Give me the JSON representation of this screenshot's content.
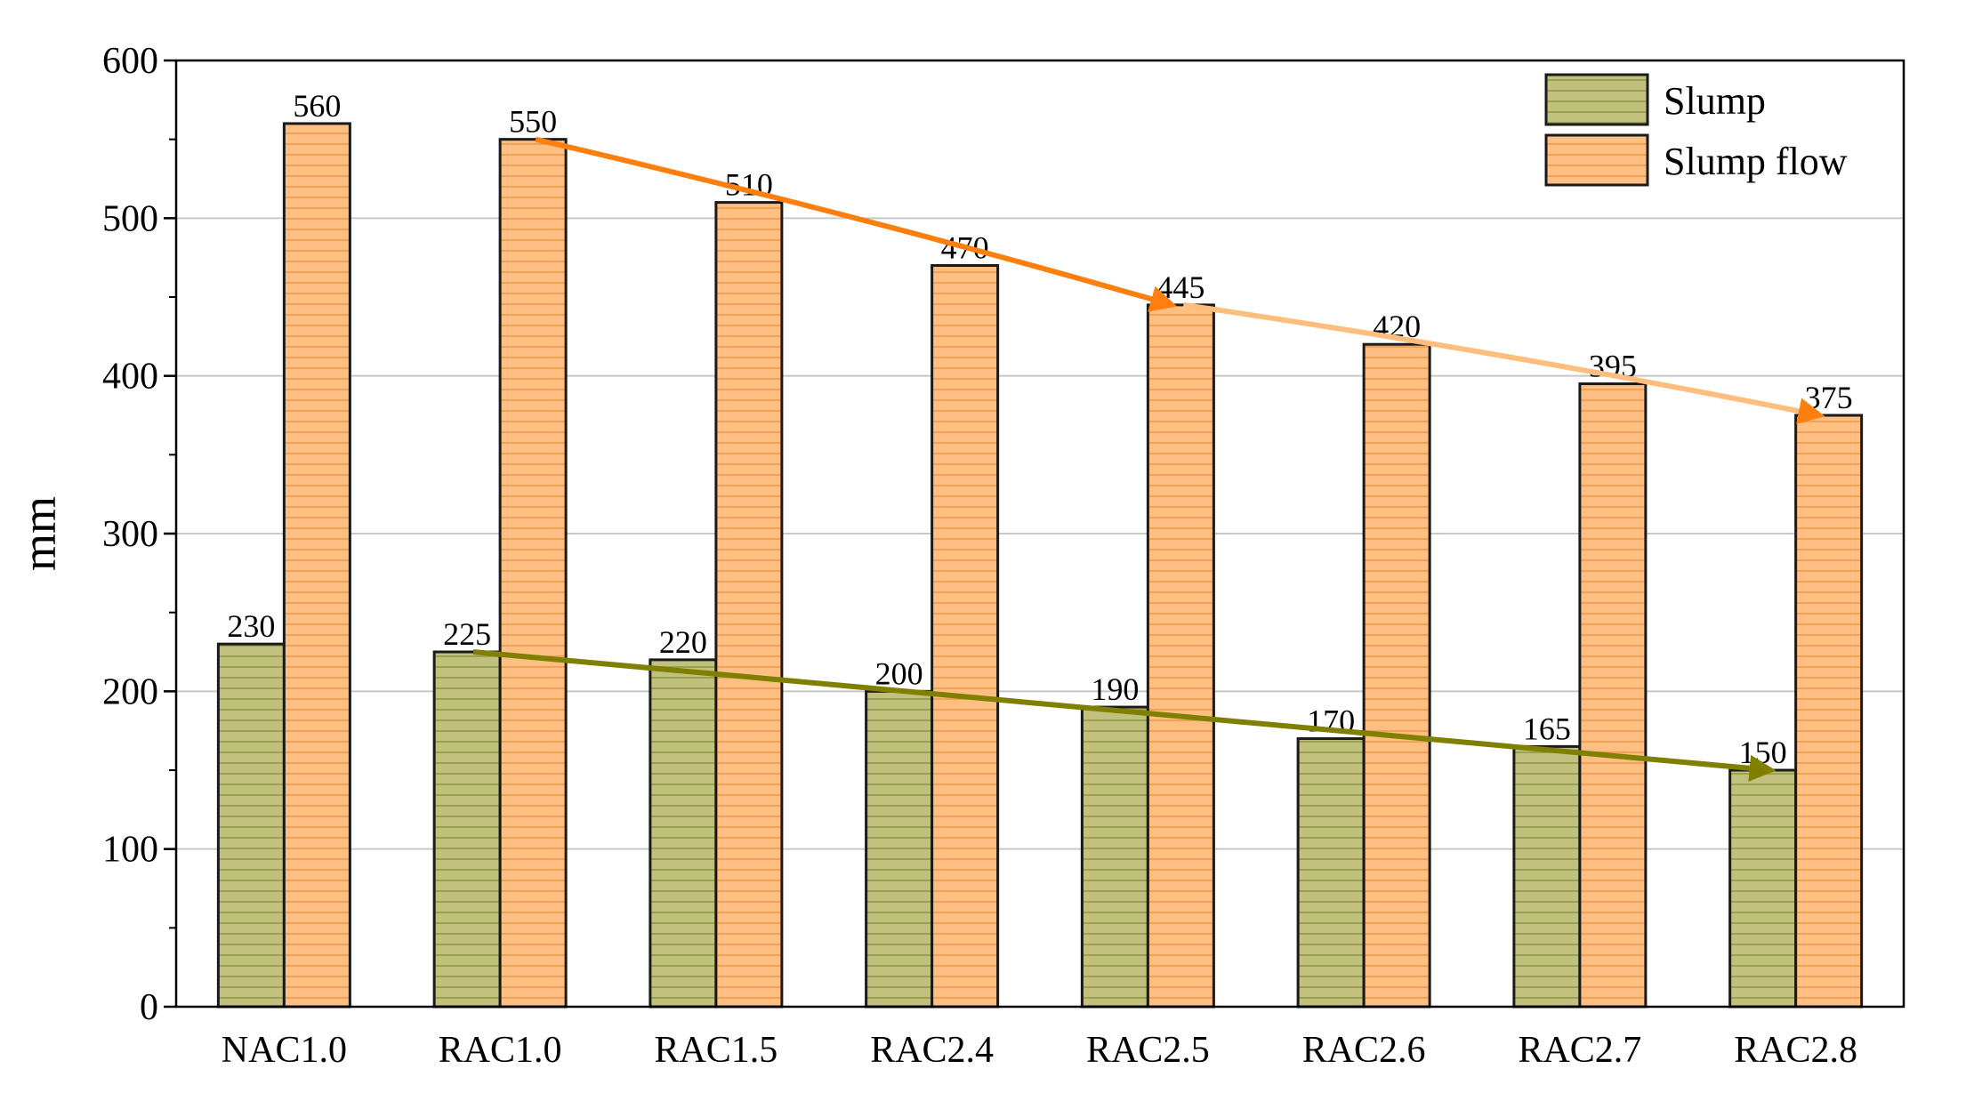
{
  "chart_data": {
    "type": "bar",
    "title": "",
    "xlabel": "",
    "ylabel": "mm",
    "ylim": [
      0,
      600
    ],
    "yticks": [
      0,
      100,
      200,
      300,
      400,
      500,
      600
    ],
    "grid": true,
    "legend_position": "top-right",
    "categories": [
      "NAC1.0",
      "RAC1.0",
      "RAC1.5",
      "RAC2.4",
      "RAC2.5",
      "RAC2.6",
      "RAC2.7",
      "RAC2.8"
    ],
    "series": [
      {
        "name": "Slump",
        "color": "#c2c07e",
        "stripe_color": "#8f9a44",
        "values": [
          230,
          225,
          220,
          200,
          190,
          170,
          165,
          150
        ]
      },
      {
        "name": "Slump flow",
        "color": "#ffbf82",
        "stripe_color": "#ee9a4a",
        "values": [
          560,
          550,
          510,
          470,
          445,
          420,
          395,
          375
        ]
      }
    ],
    "annotations": [
      {
        "type": "trend-arrow",
        "series": "Slump flow",
        "from_category": "RAC1.0",
        "to_category": "RAC2.5",
        "color": "#ff7f0e"
      },
      {
        "type": "trend-arrow",
        "series": "Slump flow",
        "from_category": "RAC2.5",
        "to_category": "RAC2.8",
        "color": "#ffbe7d"
      },
      {
        "type": "trend-arrow",
        "series": "Slump",
        "from_category": "RAC1.0",
        "to_category": "RAC2.8",
        "color": "#7f7f00"
      }
    ]
  }
}
